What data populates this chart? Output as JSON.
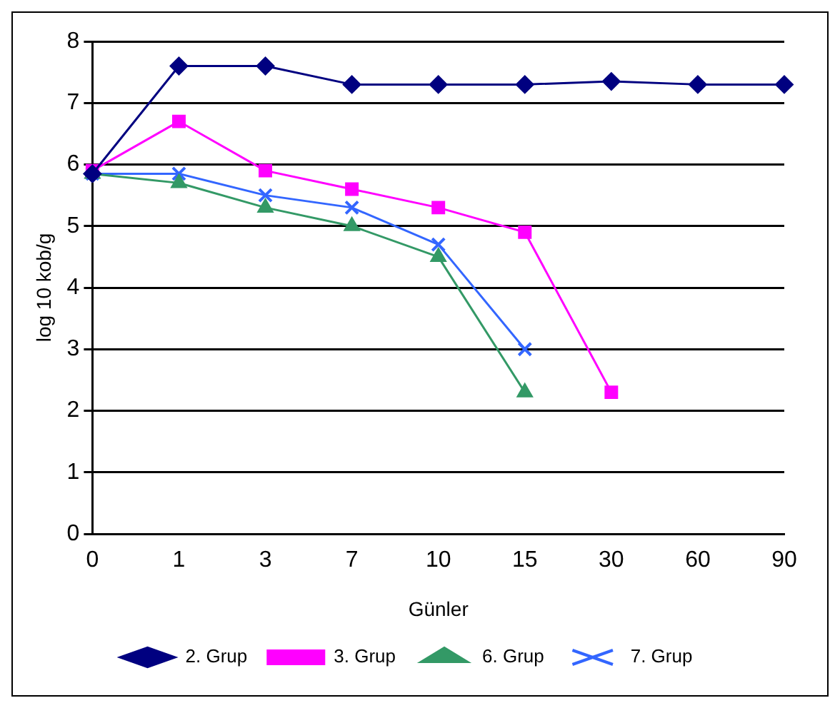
{
  "chart_data": {
    "type": "line",
    "xlabel": "Günler",
    "ylabel": "log 10 kob/g",
    "categories": [
      "0",
      "1",
      "3",
      "7",
      "10",
      "15",
      "30",
      "60",
      "90"
    ],
    "ylim": [
      0,
      8
    ],
    "yticks": [
      0,
      1,
      2,
      3,
      4,
      5,
      6,
      7,
      8
    ],
    "grid": "y",
    "legend": "bottom",
    "series": [
      {
        "name": "2. Grup",
        "color": "#000080",
        "marker": "diamond",
        "values": [
          5.85,
          7.6,
          7.6,
          7.3,
          7.3,
          7.3,
          7.35,
          7.3,
          7.3
        ]
      },
      {
        "name": "3. Grup",
        "color": "#ff00ff",
        "marker": "square",
        "values": [
          5.9,
          6.7,
          5.9,
          5.6,
          5.3,
          4.9,
          2.3,
          null,
          null
        ]
      },
      {
        "name": "6. Grup",
        "color": "#339966",
        "marker": "triangle",
        "values": [
          5.85,
          5.7,
          5.3,
          5.0,
          4.5,
          2.3,
          null,
          null,
          null
        ]
      },
      {
        "name": "7. Grup",
        "color": "#3366ff",
        "marker": "cross",
        "values": [
          5.85,
          5.85,
          5.5,
          5.3,
          4.7,
          3.0,
          null,
          null,
          null
        ]
      }
    ]
  }
}
